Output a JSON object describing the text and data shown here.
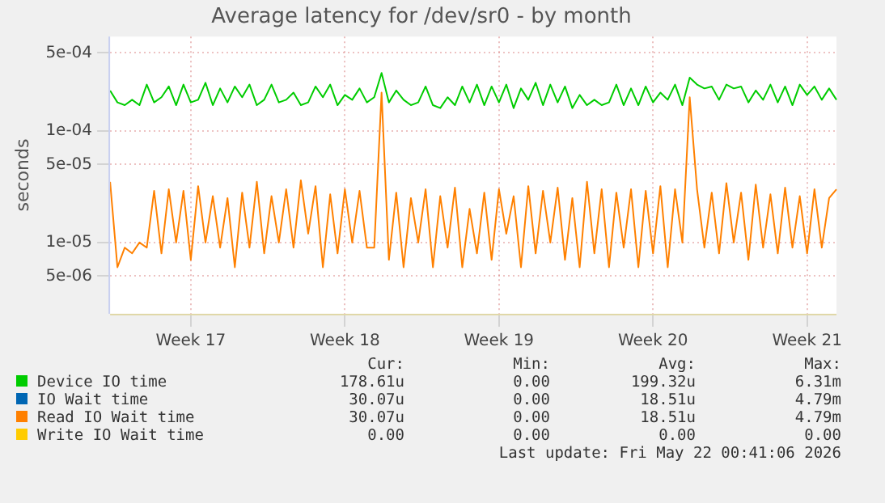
{
  "chart_data": {
    "type": "line",
    "title": "Average latency for /dev/sr0 - by month",
    "ylabel": "seconds",
    "log": "y",
    "grid": true,
    "legend": "bottom",
    "categories": [
      null,
      null,
      null,
      null,
      null,
      null,
      null,
      null,
      null,
      null,
      null,
      "Week 17",
      null,
      null,
      null,
      null,
      null,
      null,
      null,
      null,
      null,
      null,
      null,
      null,
      null,
      null,
      null,
      null,
      null,
      null,
      null,
      null,
      "Week 18",
      null,
      null,
      null,
      null,
      null,
      null,
      null,
      null,
      null,
      null,
      null,
      null,
      null,
      null,
      null,
      null,
      null,
      null,
      null,
      null,
      "Week 19",
      null,
      null,
      null,
      null,
      null,
      null,
      null,
      null,
      null,
      null,
      null,
      null,
      null,
      null,
      null,
      null,
      null,
      null,
      null,
      null,
      "Week 20",
      null,
      null,
      null,
      null,
      null,
      null,
      null,
      null,
      null,
      null,
      null,
      null,
      null,
      null,
      null,
      null,
      null,
      null,
      null,
      null,
      "Week 21",
      null,
      null,
      null,
      null
    ],
    "ylim": [
      2.3e-06,
      0.0007
    ],
    "yticks": [
      {
        "value": 5e-06,
        "label": "5e-06"
      },
      {
        "value": 1e-05,
        "label": "1e-05"
      },
      {
        "value": 5e-05,
        "label": "5e-05"
      },
      {
        "value": 0.0001,
        "label": "1e-04"
      },
      {
        "value": 0.0005,
        "label": "5e-04"
      }
    ],
    "series": [
      {
        "name": "Device IO time",
        "color": "#00cc00",
        "values": [
          0.00023,
          0.00018,
          0.00017,
          0.00019,
          0.00017,
          0.00026,
          0.00018,
          0.0002,
          0.00025,
          0.00017,
          0.00026,
          0.00018,
          0.00019,
          0.00027,
          0.00017,
          0.00024,
          0.00018,
          0.00025,
          0.0002,
          0.00026,
          0.00017,
          0.00019,
          0.00026,
          0.00018,
          0.00019,
          0.00022,
          0.00017,
          0.00018,
          0.00025,
          0.0002,
          0.00026,
          0.00017,
          0.00021,
          0.00019,
          0.00024,
          0.00018,
          0.0002,
          0.00033,
          0.00018,
          0.00023,
          0.00019,
          0.00017,
          0.00018,
          0.00025,
          0.00017,
          0.00016,
          0.0002,
          0.00017,
          0.00025,
          0.00018,
          0.00026,
          0.00017,
          0.00025,
          0.00018,
          0.00026,
          0.00016,
          0.00024,
          0.00019,
          0.00027,
          0.00017,
          0.00026,
          0.00018,
          0.00025,
          0.00016,
          0.00021,
          0.00017,
          0.00019,
          0.00017,
          0.00018,
          0.00026,
          0.00017,
          0.00024,
          0.00017,
          0.00025,
          0.00018,
          0.00022,
          0.00019,
          0.00026,
          0.00017,
          0.0003,
          0.00026,
          0.00024,
          0.00025,
          0.00019,
          0.00026,
          0.00024,
          0.00025,
          0.00018,
          0.00023,
          0.00019,
          0.00026,
          0.00018,
          0.00025,
          0.00017,
          0.00026,
          0.00021,
          0.00025,
          0.00019,
          0.00024,
          0.00019
        ]
      },
      {
        "name": "IO Wait time",
        "color": "#0066b3",
        "values": [
          null,
          null,
          null,
          null,
          null,
          null,
          null,
          null,
          null,
          null,
          null,
          null,
          null,
          null,
          null,
          null,
          null,
          null,
          null,
          null,
          null,
          null,
          null,
          null,
          null,
          null,
          null,
          null,
          null,
          null,
          null,
          null,
          null,
          null,
          null,
          null,
          null,
          null,
          null,
          null,
          null,
          null,
          null,
          null,
          null,
          null,
          null,
          null,
          null,
          null,
          null,
          null,
          null,
          null,
          null,
          null,
          null,
          null,
          null,
          null,
          null,
          null,
          null,
          null,
          null,
          null,
          null,
          null,
          null,
          null,
          null,
          null,
          null,
          null,
          null,
          null,
          null,
          null,
          null,
          null,
          null,
          null,
          null,
          null,
          null,
          null,
          null,
          null,
          null,
          null,
          null,
          null,
          null,
          null,
          null,
          null,
          null,
          null,
          null,
          null
        ]
      },
      {
        "name": "Read IO Wait time",
        "color": "#ff8000",
        "values": [
          3.5e-05,
          6e-06,
          9e-06,
          8e-06,
          1e-05,
          9e-06,
          2.9e-05,
          8e-06,
          3e-05,
          1e-05,
          2.9e-05,
          7e-06,
          3.2e-05,
          1e-05,
          2.6e-05,
          9e-06,
          2.5e-05,
          6e-06,
          2.8e-05,
          9e-06,
          3.5e-05,
          8e-06,
          2.6e-05,
          1e-05,
          3e-05,
          9e-06,
          3.6e-05,
          1.2e-05,
          3.2e-05,
          6e-06,
          2.7e-05,
          8e-06,
          3e-05,
          1e-05,
          2.9e-05,
          9e-06,
          9e-06,
          0.00022,
          7e-06,
          2.8e-05,
          6e-06,
          2.5e-05,
          1e-05,
          3e-05,
          6e-06,
          2.6e-05,
          9e-06,
          3.1e-05,
          6e-06,
          2e-05,
          8e-06,
          2.8e-05,
          7e-06,
          3e-05,
          1.2e-05,
          2.6e-05,
          6e-06,
          3.2e-05,
          8e-06,
          2.9e-05,
          1e-05,
          3.1e-05,
          7e-06,
          2.5e-05,
          6e-06,
          3.5e-05,
          8e-06,
          3e-05,
          6e-06,
          2.8e-05,
          9e-06,
          3e-05,
          6e-06,
          2.9e-05,
          8e-06,
          3.2e-05,
          6e-06,
          3e-05,
          1e-05,
          0.0002,
          3e-05,
          9e-06,
          2.8e-05,
          8e-06,
          3.4e-05,
          1e-05,
          2.8e-05,
          7e-06,
          3.3e-05,
          9e-06,
          2.7e-05,
          8e-06,
          3.1e-05,
          9e-06,
          2.6e-05,
          8e-06,
          3e-05,
          9e-06,
          2.5e-05,
          3e-05
        ]
      },
      {
        "name": "Write IO Wait time",
        "color": "#ffcc00",
        "values": [
          null,
          null,
          null,
          null,
          null,
          null,
          null,
          null,
          null,
          null,
          null,
          null,
          null,
          null,
          null,
          null,
          null,
          null,
          null,
          null,
          null,
          null,
          null,
          null,
          null,
          null,
          null,
          null,
          null,
          null,
          null,
          null,
          null,
          null,
          null,
          null,
          null,
          null,
          null,
          null,
          null,
          null,
          null,
          null,
          null,
          null,
          null,
          null,
          null,
          null,
          null,
          null,
          null,
          null,
          null,
          null,
          null,
          null,
          null,
          null,
          null,
          null,
          null,
          null,
          null,
          null,
          null,
          null,
          null,
          null,
          null,
          null,
          null,
          null,
          null,
          null,
          null,
          null,
          null,
          null,
          null,
          null,
          null,
          null,
          null,
          null,
          null,
          null,
          null,
          null,
          null,
          null,
          null,
          null,
          null,
          null,
          null,
          null,
          null,
          null
        ]
      }
    ],
    "annotations": [
      "Cur:",
      "Min:",
      "Avg:",
      "Max:",
      "178.61u",
      "0.00",
      "199.32u",
      "6.31m",
      "30.07u",
      "0.00",
      "18.51u",
      "4.79m",
      "30.07u",
      "0.00",
      "18.51u",
      "4.79m",
      "0.00",
      "0.00",
      "0.00",
      "0.00",
      "Last update: Fri May 22 00:41:06 2026"
    ]
  }
}
